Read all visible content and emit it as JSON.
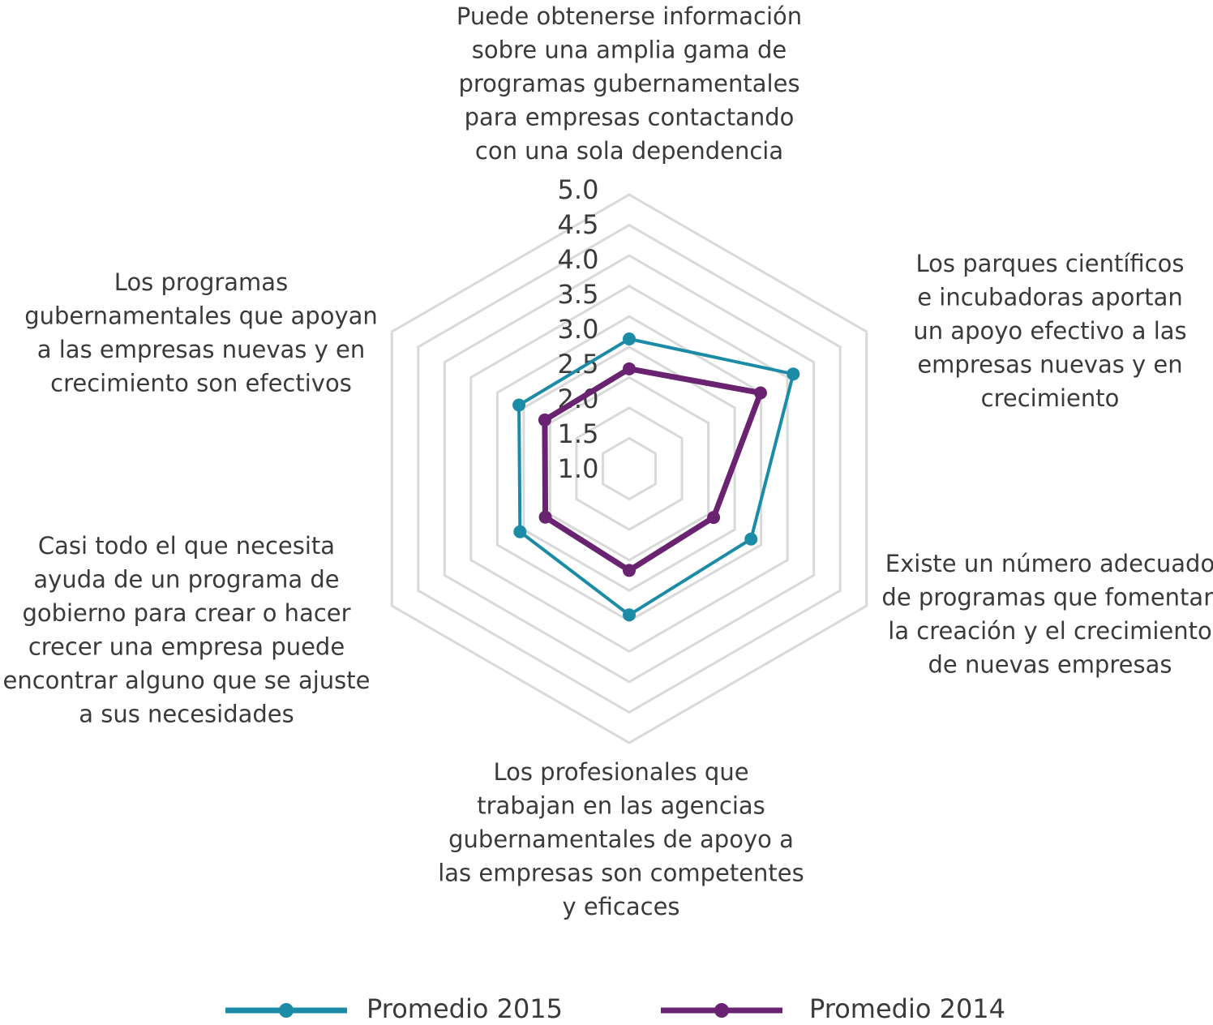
{
  "chart_data": {
    "type": "radar",
    "categories": [
      [
        "Puede obtenerse información",
        "sobre una amplia gama de",
        "programas gubernamentales",
        "para empresas contactando",
        "con una sola dependencia"
      ],
      [
        "Los parques científicos",
        "e incubadoras aportan",
        "un apoyo efectivo a las",
        "empresas nuevas y en",
        "crecimiento"
      ],
      [
        "Existe un número adecuado",
        "de programas que fomentan",
        "la creación y el crecimiento",
        "de nuevas empresas"
      ],
      [
        "Los profesionales que",
        "trabajan en las agencias",
        "gubernamentales de apoyo a",
        "las empresas son competentes",
        "y eficaces"
      ],
      [
        "Casi todo el que necesita",
        "ayuda de un programa de",
        "gobierno para crear o hacer",
        "crecer una empresa puede",
        "encontrar alguno que se ajuste",
        "a sus necesidades"
      ],
      [
        "Los programas",
        "gubernamentales que apoyan",
        "a las empresas nuevas y en",
        "crecimiento son efectivos"
      ]
    ],
    "series": [
      {
        "name": "Promedio 2015",
        "color": "#1b8ba6",
        "values": [
          2.63,
          3.61,
          2.81,
          2.9,
          2.57,
          2.59
        ]
      },
      {
        "name": "Promedio 2014",
        "color": "#6a2370",
        "values": [
          2.14,
          2.99,
          2.1,
          2.17,
          2.09,
          2.1
        ]
      }
    ],
    "ylim": [
      0.5,
      5
    ],
    "yticks": [
      {
        "value": 1,
        "label": "1.0"
      },
      1.5,
      {
        "value": 2,
        "label": "2.0"
      },
      2.5,
      {
        "value": 3,
        "label": "3.0"
      },
      3.5,
      {
        "value": 4,
        "label": "4.0"
      },
      4.5,
      {
        "value": 5,
        "label": "5.0"
      }
    ],
    "grid": true,
    "legend": "bottom"
  }
}
